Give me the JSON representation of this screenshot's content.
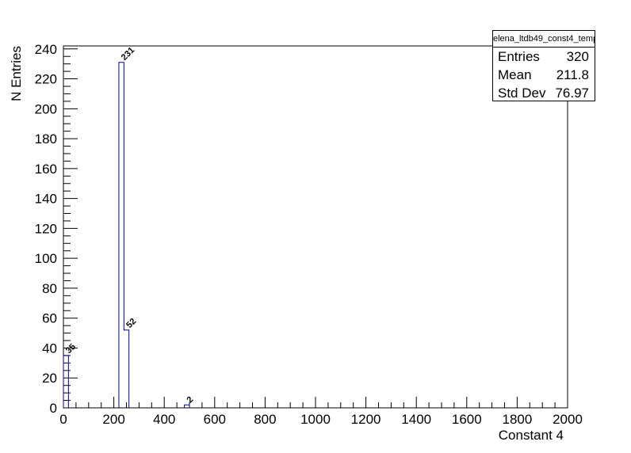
{
  "chart_data": {
    "type": "histogram",
    "title": "",
    "xlabel": "Constant 4",
    "ylabel": "N Entries",
    "xlim": [
      0,
      2000
    ],
    "ylim": [
      0,
      242
    ],
    "bin_width": 20,
    "x_ticks": [
      0,
      200,
      400,
      600,
      800,
      1000,
      1200,
      1400,
      1600,
      1800,
      2000
    ],
    "y_ticks": [
      0,
      20,
      40,
      60,
      80,
      100,
      120,
      140,
      160,
      180,
      200,
      220,
      240
    ],
    "bins": [
      {
        "x0": 0,
        "x1": 20,
        "value": 35,
        "label": "35"
      },
      {
        "x0": 220,
        "x1": 240,
        "value": 231,
        "label": "231"
      },
      {
        "x0": 240,
        "x1": 260,
        "value": 52,
        "label": "52"
      },
      {
        "x0": 480,
        "x1": 500,
        "value": 2,
        "label": "2"
      }
    ],
    "grid": false,
    "bar_color": "#00007f"
  },
  "stats": {
    "name": "elena_ltdb49_const4_temp",
    "rows": [
      {
        "label": "Entries",
        "value": "320"
      },
      {
        "label": "Mean",
        "value": "211.8"
      },
      {
        "label": "Std Dev",
        "value": "76.97"
      }
    ]
  }
}
